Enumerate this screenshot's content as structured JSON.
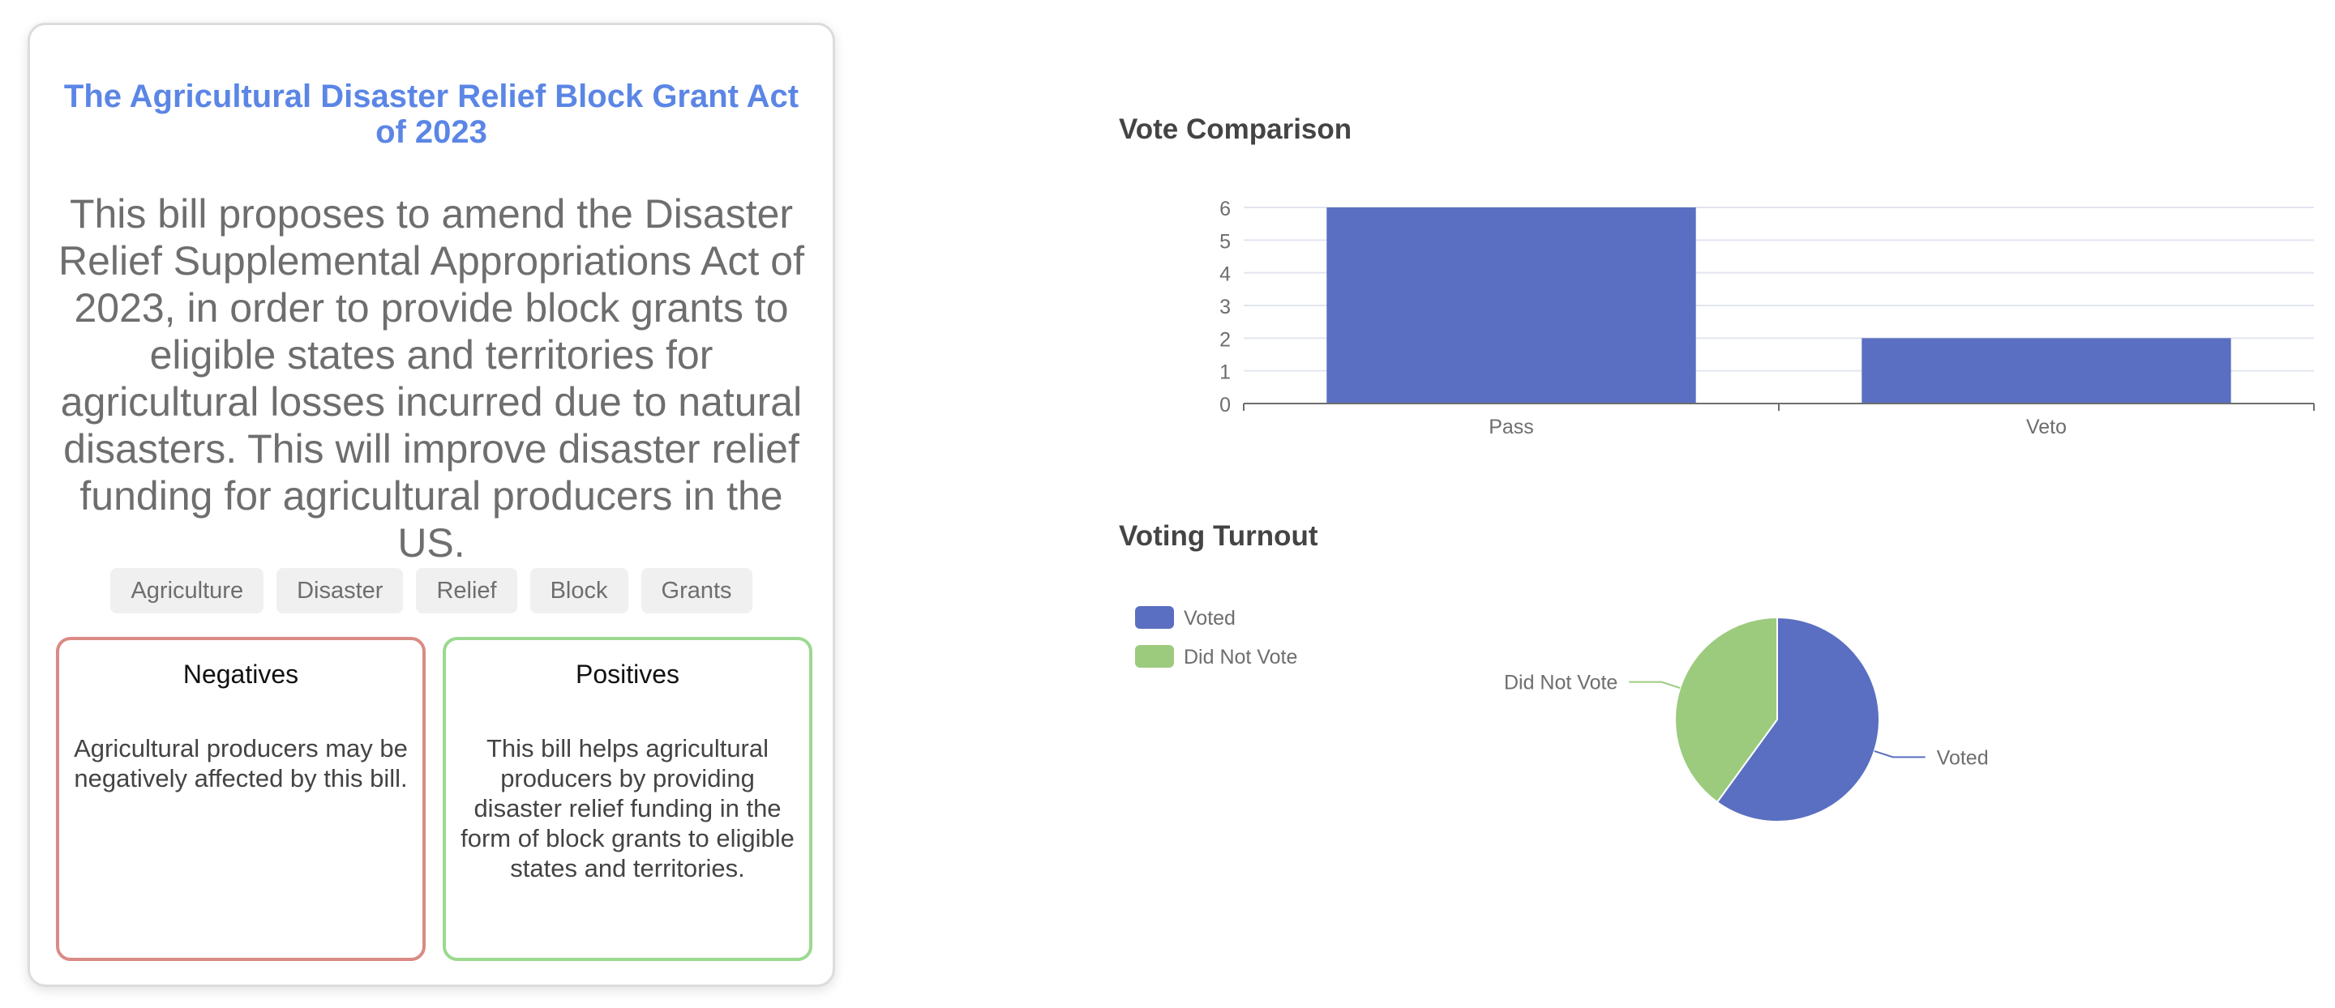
{
  "bill": {
    "title": "The Agricultural Disaster Relief Block Grant Act of 2023",
    "description": "This bill proposes to amend the Disaster Relief Supplemental Appropriations Act of 2023, in order to provide block grants to eligible states and territories for agricultural losses incurred due to natural disasters. This will improve disaster relief funding for agricultural producers in the US.",
    "tags": [
      "Agriculture",
      "Disaster",
      "Relief",
      "Block",
      "Grants"
    ],
    "negatives": {
      "heading": "Negatives",
      "text": "Agricultural producers may be negatively affected by this bill."
    },
    "positives": {
      "heading": "Positives",
      "text": "This bill helps agricultural producers by providing disaster relief funding in the form of block grants to eligible states and territories."
    }
  },
  "colors": {
    "accent": "#5b86e5",
    "bar": "#5a6fc1",
    "voted": "#5a6fc1",
    "did_not_vote": "#9ccb7e",
    "negative_border": "#da8b84",
    "positive_border": "#9bd98f"
  },
  "chart_data": [
    {
      "type": "bar",
      "title": "Vote Comparison",
      "categories": [
        "Pass",
        "Veto"
      ],
      "values": [
        6,
        2
      ],
      "ylim": [
        0,
        6
      ],
      "yticks": [
        0,
        1,
        2,
        3,
        4,
        5,
        6
      ],
      "grid": true
    },
    {
      "type": "pie",
      "title": "Voting Turnout",
      "labels": [
        "Voted",
        "Did Not Vote"
      ],
      "values": [
        60,
        40
      ],
      "legend": "top-left"
    }
  ]
}
